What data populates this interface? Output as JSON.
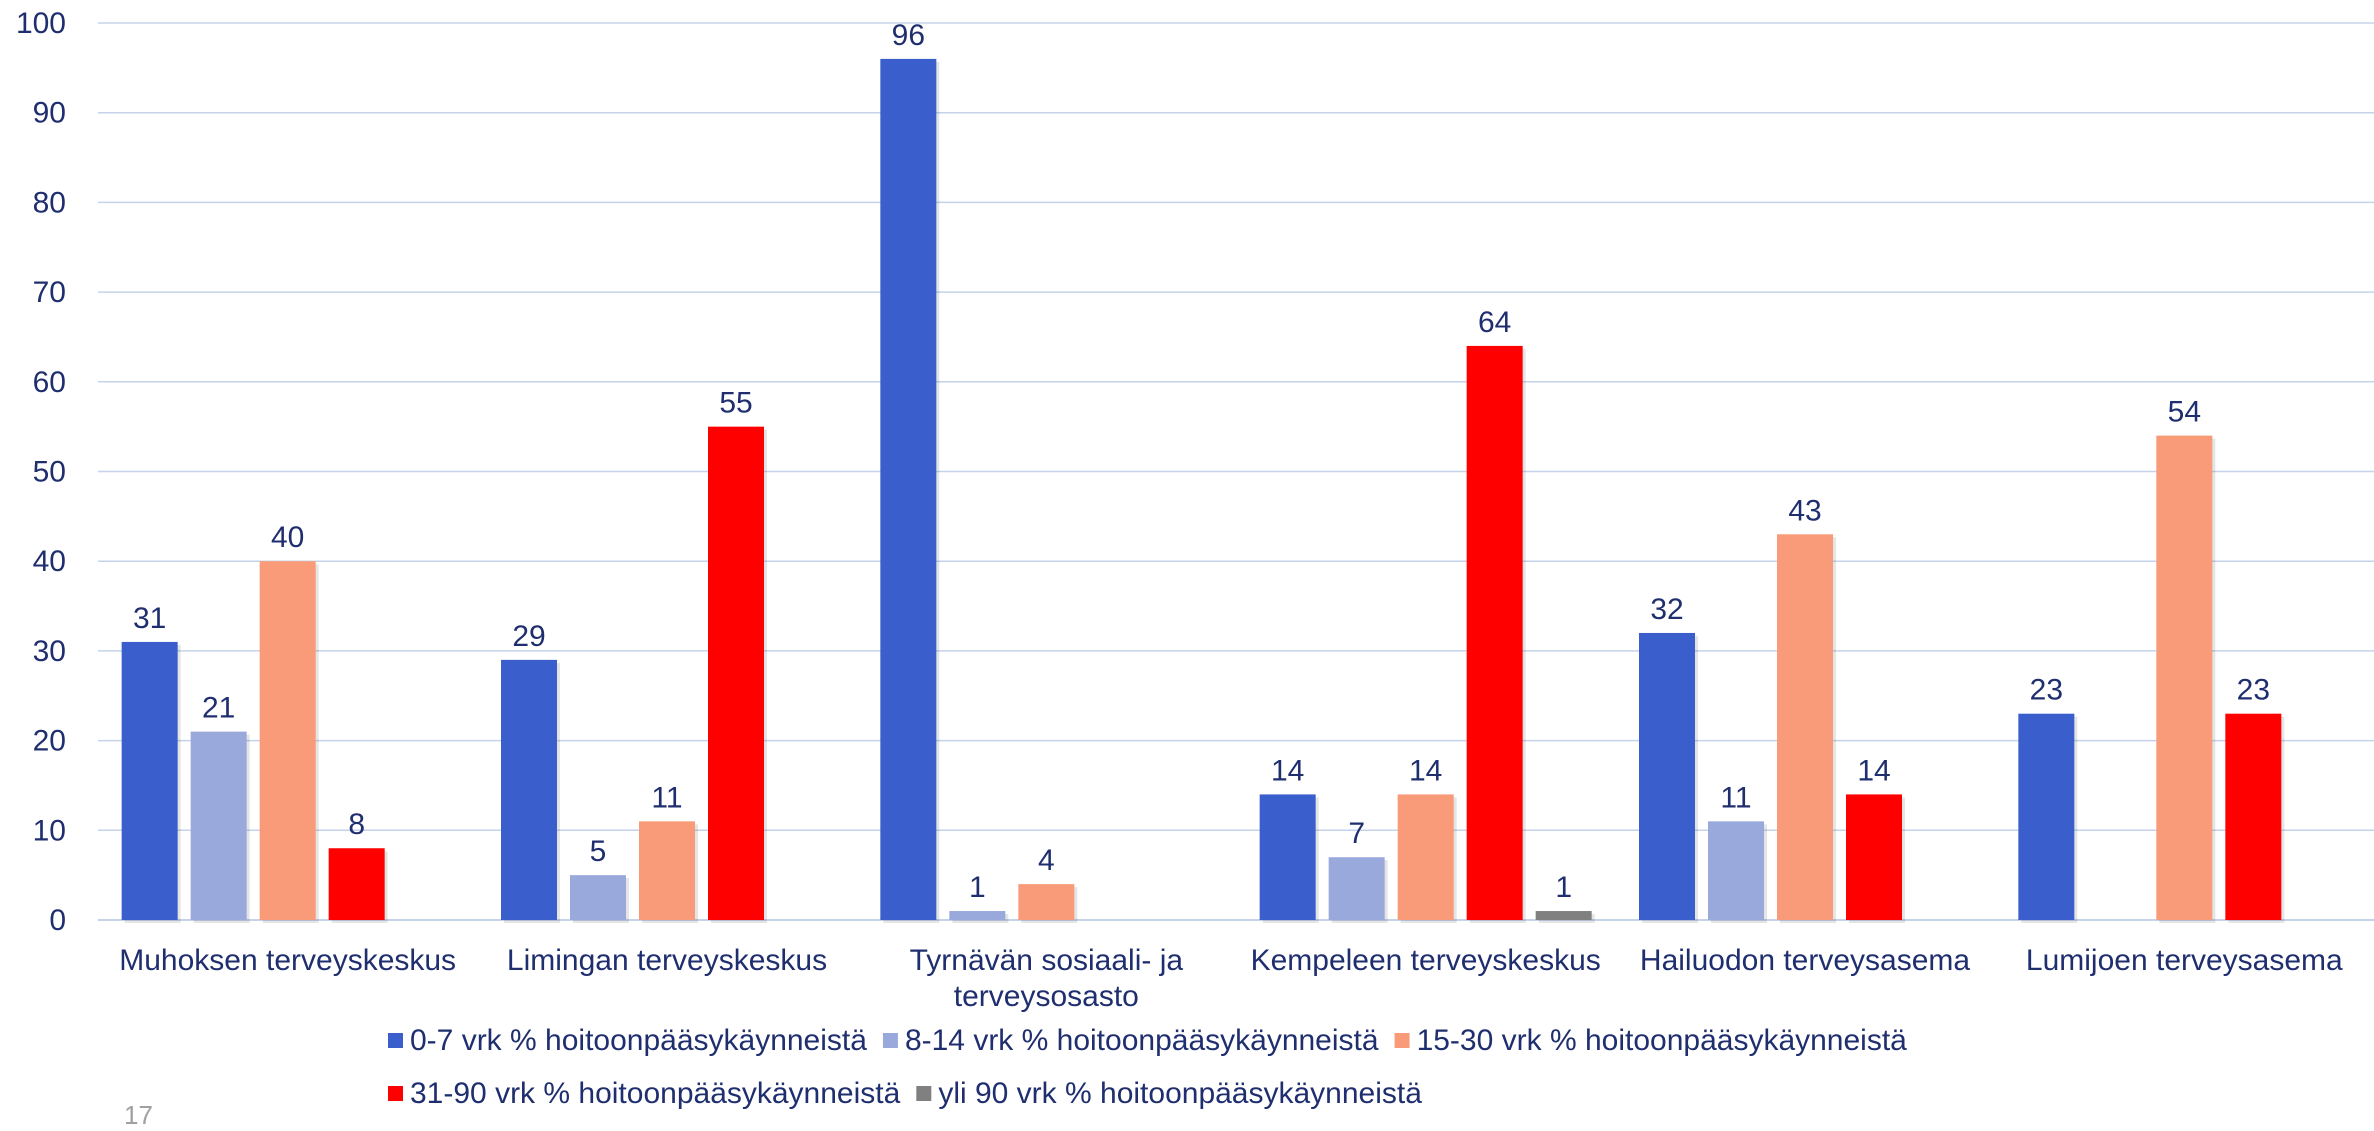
{
  "chart_data": {
    "type": "bar",
    "categories": [
      [
        "Muhoksen terveyskeskus"
      ],
      [
        "Limingan terveyskeskus"
      ],
      [
        "Tyrnävän sosiaali- ja",
        "terveysosasto"
      ],
      [
        "Kempeleen terveyskeskus"
      ],
      [
        "Hailuodon terveysasema"
      ],
      [
        "Lumijoen terveysasema"
      ]
    ],
    "series": [
      {
        "name": "0-7 vrk % hoitoonpääsykäynneistä",
        "color": "#3a5fcd",
        "values": [
          31,
          29,
          96,
          14,
          32,
          23
        ]
      },
      {
        "name": "8-14 vrk % hoitoonpääsykäynneistä",
        "color": "#9aa9dc",
        "values": [
          21,
          5,
          1,
          7,
          11,
          null
        ]
      },
      {
        "name": "15-30 vrk % hoitoonpääsykäynneistä",
        "color": "#f99a78",
        "values": [
          40,
          11,
          4,
          14,
          43,
          54
        ]
      },
      {
        "name": "31-90 vrk % hoitoonpääsykäynneistä",
        "color": "#ff0000",
        "values": [
          8,
          55,
          null,
          64,
          14,
          23
        ]
      },
      {
        "name": "yli 90 vrk % hoitoonpääsykäynneistä",
        "color": "#808080",
        "values": [
          null,
          null,
          null,
          1,
          null,
          null
        ]
      }
    ],
    "ylim": [
      0,
      100
    ],
    "yticks": [
      0,
      10,
      20,
      30,
      40,
      50,
      60,
      70,
      80,
      90,
      100
    ],
    "grid": true,
    "legend_position": "bottom"
  },
  "page_number": "17"
}
